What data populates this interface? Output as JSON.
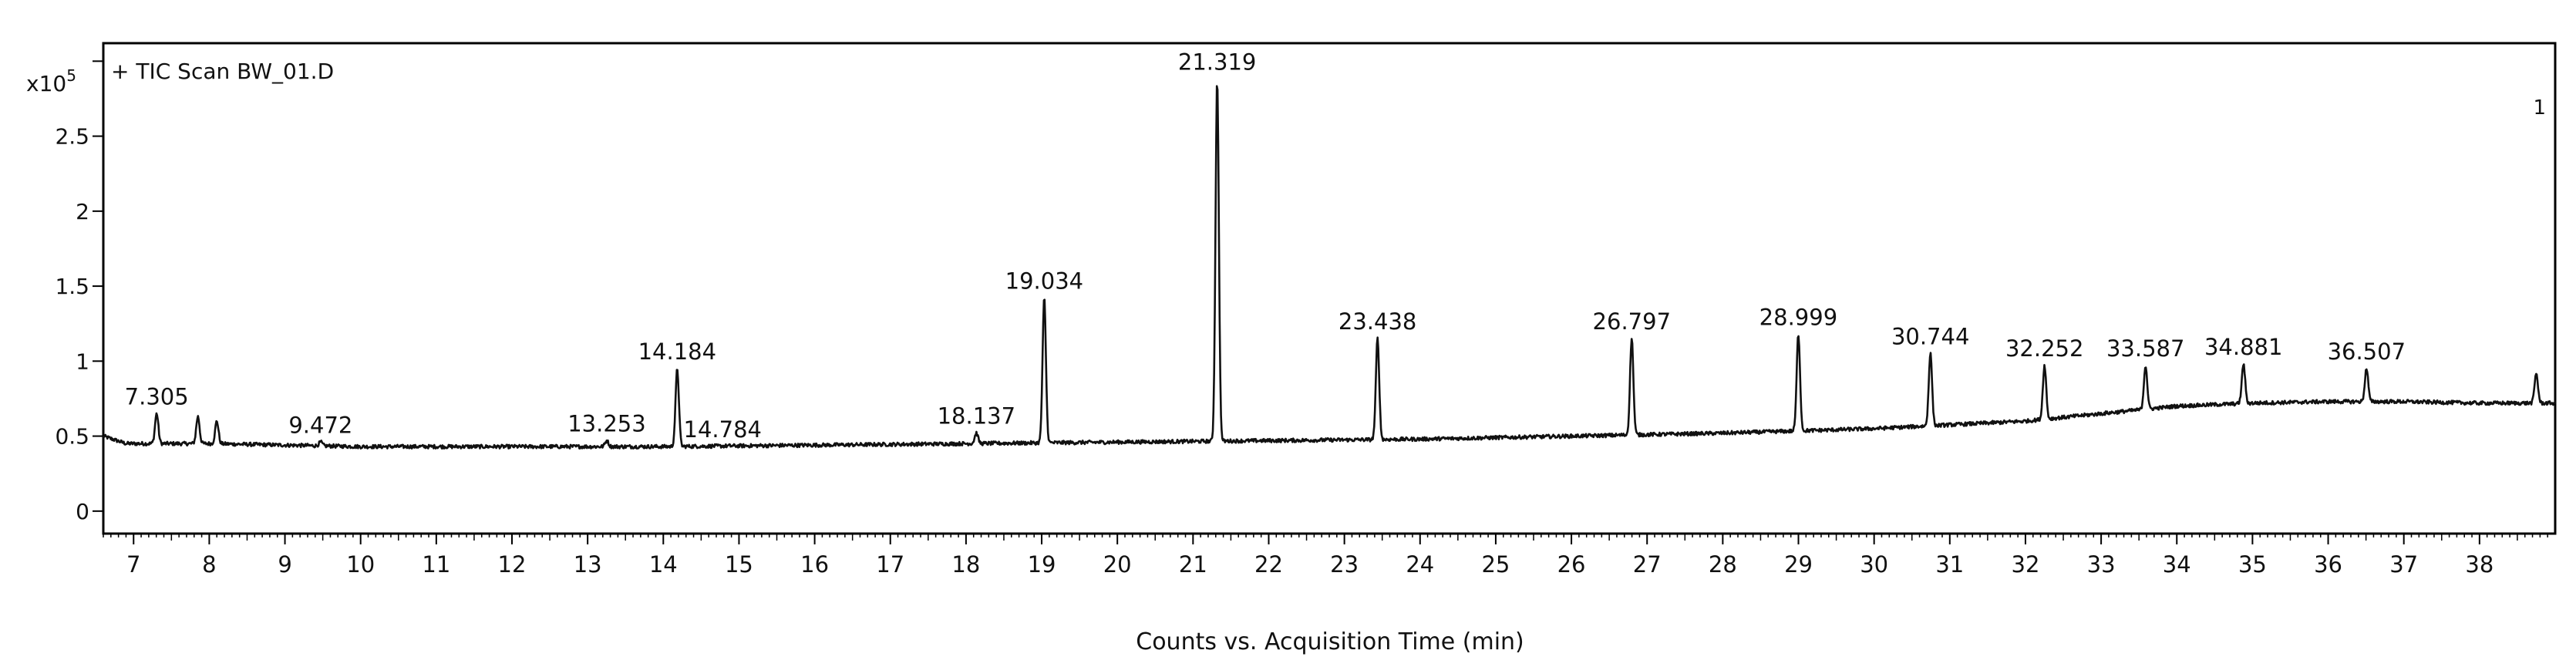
{
  "chart_data": {
    "type": "line",
    "title": "+ TIC Scan BW_01.D",
    "xlabel": "Counts vs. Acquisition Time (min)",
    "ylabel": "",
    "y_multiplier": "x10",
    "y_exponent": "5",
    "xlim": [
      6.6,
      39.0
    ],
    "ylim": [
      -0.15,
      3.12
    ],
    "x_ticks": [
      7,
      8,
      9,
      10,
      11,
      12,
      13,
      14,
      15,
      16,
      17,
      18,
      19,
      20,
      21,
      22,
      23,
      24,
      25,
      26,
      27,
      28,
      29,
      30,
      31,
      32,
      33,
      34,
      35,
      36,
      37,
      38
    ],
    "y_ticks": [
      {
        "value": 0,
        "label": "0"
      },
      {
        "value": 0.5,
        "label": "0.5"
      },
      {
        "value": 1,
        "label": "1"
      },
      {
        "value": 1.5,
        "label": "1.5"
      },
      {
        "value": 2,
        "label": "2"
      },
      {
        "value": 2.5,
        "label": "2.5"
      },
      {
        "value": 3,
        "label": ""
      }
    ],
    "grid": false,
    "baseline": [
      [
        6.6,
        0.5
      ],
      [
        6.9,
        0.45
      ],
      [
        8,
        0.45
      ],
      [
        10,
        0.43
      ],
      [
        12,
        0.43
      ],
      [
        14,
        0.43
      ],
      [
        16,
        0.44
      ],
      [
        18,
        0.45
      ],
      [
        20,
        0.46
      ],
      [
        22,
        0.47
      ],
      [
        24,
        0.48
      ],
      [
        26,
        0.5
      ],
      [
        28,
        0.52
      ],
      [
        30,
        0.55
      ],
      [
        32,
        0.6
      ],
      [
        33,
        0.65
      ],
      [
        34,
        0.7
      ],
      [
        35,
        0.72
      ],
      [
        36,
        0.73
      ],
      [
        37,
        0.73
      ],
      [
        38,
        0.72
      ],
      [
        38.9,
        0.72
      ]
    ],
    "peaks": [
      {
        "x": 7.305,
        "height": 0.65,
        "label": "7.305"
      },
      {
        "x": 7.85,
        "height": 0.63,
        "label": ""
      },
      {
        "x": 8.1,
        "height": 0.6,
        "label": ""
      },
      {
        "x": 9.472,
        "height": 0.46,
        "label": "9.472"
      },
      {
        "x": 13.253,
        "height": 0.47,
        "label": "13.253"
      },
      {
        "x": 14.184,
        "height": 0.95,
        "label": "14.184"
      },
      {
        "x": 14.784,
        "height": 0.43,
        "label": "14.784"
      },
      {
        "x": 18.137,
        "height": 0.52,
        "label": "18.137"
      },
      {
        "x": 19.034,
        "height": 1.42,
        "label": "19.034"
      },
      {
        "x": 21.319,
        "height": 2.88,
        "label": "21.319"
      },
      {
        "x": 23.438,
        "height": 1.15,
        "label": "23.438"
      },
      {
        "x": 26.797,
        "height": 1.15,
        "label": "26.797"
      },
      {
        "x": 28.999,
        "height": 1.18,
        "label": "28.999"
      },
      {
        "x": 30.744,
        "height": 1.05,
        "label": "30.744"
      },
      {
        "x": 32.252,
        "height": 0.97,
        "label": "32.252"
      },
      {
        "x": 33.587,
        "height": 0.97,
        "label": "33.587"
      },
      {
        "x": 34.881,
        "height": 0.98,
        "label": "34.881"
      },
      {
        "x": 36.507,
        "height": 0.95,
        "label": "36.507"
      },
      {
        "x": 38.75,
        "height": 0.92,
        "label": ""
      }
    ],
    "edge_marker": "1"
  }
}
